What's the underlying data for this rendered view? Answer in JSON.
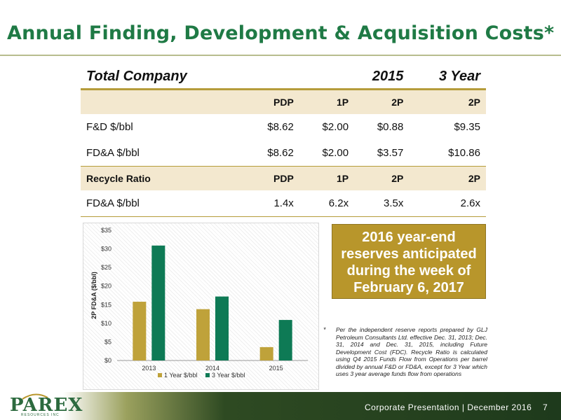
{
  "title": "Annual Finding, Development & Acquisition Costs*",
  "table": {
    "header": {
      "label": "Total Company",
      "c1": "2015",
      "c2": "3 Year"
    },
    "sub1": {
      "label": "",
      "c1": "PDP",
      "c2": "1P",
      "c3": "2P",
      "c4": "2P"
    },
    "rows1": [
      {
        "label": "F&D $/bbl",
        "c1": "$8.62",
        "c2": "$2.00",
        "c3": "$0.88",
        "c4": "$9.35"
      },
      {
        "label": "FD&A $/bbl",
        "c1": "$8.62",
        "c2": "$2.00",
        "c3": "$3.57",
        "c4": "$10.86"
      }
    ],
    "sub2": {
      "label": "Recycle Ratio",
      "c1": "PDP",
      "c2": "1P",
      "c3": "2P",
      "c4": "2P"
    },
    "rows2": [
      {
        "label": "FD&A $/bbl",
        "c1": "1.4x",
        "c2": "6.2x",
        "c3": "3.5x",
        "c4": "2.6x"
      }
    ]
  },
  "callout": {
    "lines": [
      "2016 year-end",
      "reserves anticipated",
      "during the week of",
      "February 6, 2017"
    ]
  },
  "footnote": {
    "star": "*",
    "text": "Per the independent reserve reports prepared by GLJ Petroleum Consultants Ltd. effective Dec. 31, 2013; Dec. 31, 2014 and Dec. 31, 2015, including Future Development Cost (FDC). Recycle Ratio is calculated using Q4 2015 Funds Flow from Operations per barrel divided by annual F&D or FD&A, except for 3 Year which uses 3 year average funds flow from operations"
  },
  "footer": {
    "logo": "PAREX",
    "logo_sub": "RESOURCES INC",
    "text": "Corporate Presentation | December 2016",
    "page": "7"
  },
  "colors": {
    "title": "#1f7a45",
    "series1": "#bfa23a",
    "series2": "#0e7a55",
    "callout": "#b8962b"
  },
  "chart_data": {
    "type": "bar",
    "categories": [
      "2013",
      "2014",
      "2015"
    ],
    "series": [
      {
        "name": "1 Year $/bbl",
        "values": [
          15.8,
          13.8,
          3.6
        ],
        "color": "#bfa23a"
      },
      {
        "name": "3 Year $/bbl",
        "values": [
          30.9,
          17.2,
          10.9
        ],
        "color": "#0e7a55"
      }
    ],
    "ylabel": "2P FD&A ($/bbl)",
    "ylim": [
      0,
      35
    ],
    "yticks": [
      0,
      5,
      10,
      15,
      20,
      25,
      30,
      35
    ],
    "ytick_labels": [
      "$0",
      "$5",
      "$10",
      "$15",
      "$20",
      "$25",
      "$30",
      "$35"
    ],
    "legend": "bottom",
    "grid": false
  }
}
